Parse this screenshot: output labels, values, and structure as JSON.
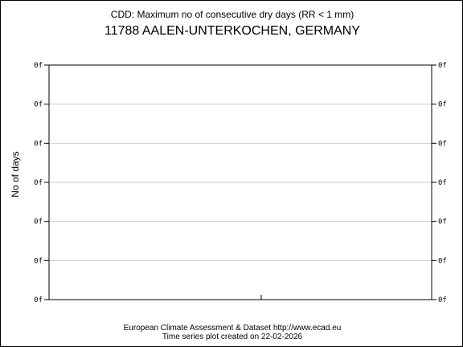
{
  "chart_data": {
    "type": "line",
    "title": "CDD: Maximum no of consecutive dry days (RR < 1 mm)",
    "subtitle": "11788 AALEN-UNTERKOCHEN, GERMANY",
    "ylabel": "No of days",
    "xlabel": "",
    "y_tick_labels": [
      "0f",
      "0f",
      "0f",
      "0f",
      "0f",
      "0f",
      "0f"
    ],
    "series": [],
    "grid": true,
    "colors": {
      "grid": "#d0d0d0",
      "axis": "#000000"
    }
  },
  "footer": {
    "line1": "European Climate Assessment & Dataset  http://www.ecad.eu",
    "line2": "Time series plot created on 22-02-2026"
  }
}
